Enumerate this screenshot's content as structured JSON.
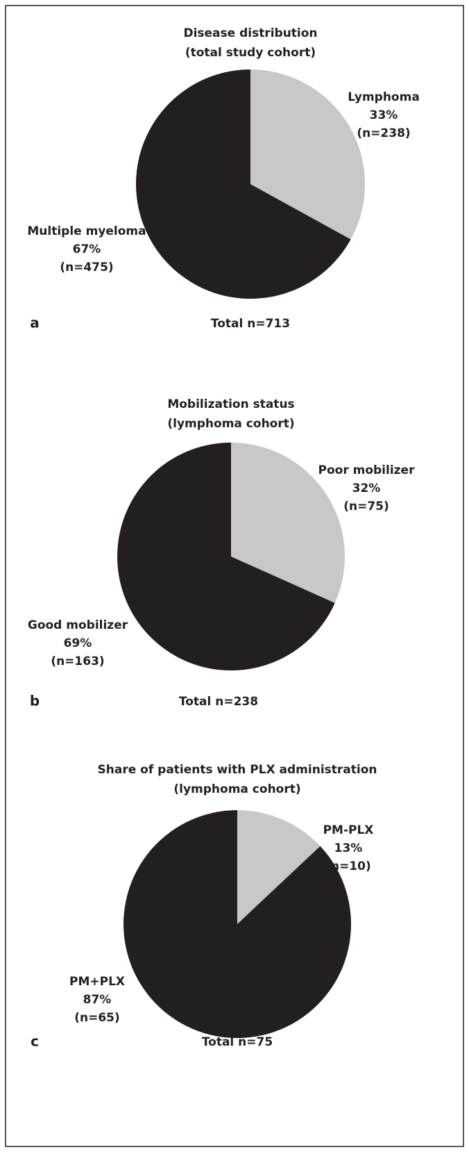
{
  "chart_data": [
    {
      "type": "pie",
      "panel": "a",
      "title": "Disease distribution",
      "subtitle": "(total study cohort)",
      "categories": [
        "Lymphoma",
        "Multiple myeloma"
      ],
      "values": [
        33,
        67
      ],
      "value_labels": [
        "33%",
        "67%"
      ],
      "n_labels": [
        "(n=238)",
        "(n=475)"
      ],
      "colors": [
        "#c8c8c8",
        "#231f20"
      ],
      "note": "Total n=713"
    },
    {
      "type": "pie",
      "panel": "b",
      "title": "Mobilization status",
      "subtitle": "(lymphoma cohort)",
      "categories": [
        "Poor mobilizer",
        "Good mobilizer"
      ],
      "values": [
        32,
        69
      ],
      "value_labels": [
        "32%",
        "69%"
      ],
      "n_labels": [
        "(n=75)",
        "(n=163)"
      ],
      "colors": [
        "#c8c8c8",
        "#231f20"
      ],
      "note": "Total n=238"
    },
    {
      "type": "pie",
      "panel": "c",
      "title": "Share of patients with PLX administration",
      "subtitle": "(lymphoma cohort)",
      "categories": [
        "PM-PLX",
        "PM+PLX"
      ],
      "values": [
        13,
        87
      ],
      "value_labels": [
        "13%",
        "87%"
      ],
      "n_labels": [
        "(n=10)",
        "(n=65)"
      ],
      "colors": [
        "#c8c8c8",
        "#231f20"
      ],
      "note": "Total n=75"
    }
  ]
}
